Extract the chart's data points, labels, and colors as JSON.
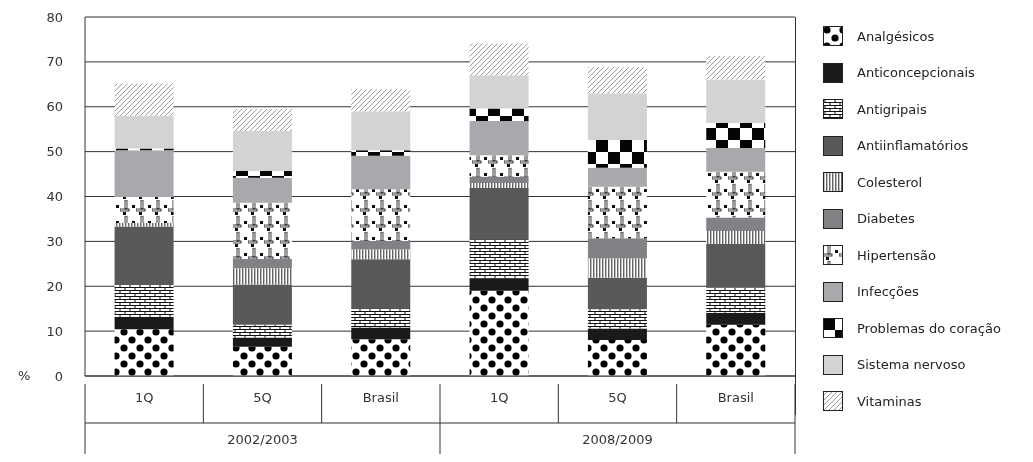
{
  "chart_data": {
    "type": "bar",
    "stacked": true,
    "ylabel": "%",
    "categories": [
      "1Q",
      "5Q",
      "Brasil",
      "1Q",
      "5Q",
      "Brasil"
    ],
    "annotations": [
      "2002/2003",
      "2008/2009"
    ],
    "series": [
      {
        "name": "Analgésicos",
        "color": "#000000",
        "values": [
          10.4,
          6.5,
          8.2,
          19.0,
          8.0,
          11.4
        ]
      },
      {
        "name": "Anticoncepcionais",
        "color": "#1a1a1a",
        "values": [
          2.8,
          2.1,
          2.6,
          2.8,
          2.6,
          2.7
        ]
      },
      {
        "name": "Antigripais",
        "color": "#111111",
        "values": [
          7.1,
          2.8,
          4.3,
          8.7,
          4.3,
          5.6
        ]
      },
      {
        "name": "Antiinflamatórios",
        "color": "#58595b",
        "values": [
          13.0,
          9.0,
          10.9,
          11.4,
          7.0,
          9.7
        ]
      },
      {
        "name": "Colesterol",
        "color": "#222222",
        "values": [
          0.8,
          3.6,
          2.2,
          1.1,
          4.3,
          2.9
        ]
      },
      {
        "name": "Diabetes",
        "color": "#808285",
        "values": [
          null,
          2.1,
          1.9,
          1.4,
          4.5,
          3.0
        ]
      },
      {
        "name": "Hipertensão",
        "color": "#0d0d0d",
        "values": [
          5.8,
          12.5,
          11.5,
          4.8,
          11.5,
          10.2
        ]
      },
      {
        "name": "Infecções",
        "color": "#a7a9ac",
        "values": [
          10.4,
          5.6,
          7.5,
          7.6,
          4.2,
          5.3
        ]
      },
      {
        "name": "Problemas do coração",
        "color": "#050505",
        "values": [
          0.4,
          1.5,
          1.2,
          2.8,
          6.2,
          5.6
        ]
      },
      {
        "name": "Sistema nervoso",
        "color": "#d1d3d4",
        "values": [
          7.3,
          8.9,
          8.7,
          7.4,
          10.4,
          9.7
        ]
      },
      {
        "name": "Vitaminas",
        "color": "#6d6e71",
        "values": [
          7.2,
          4.9,
          4.9,
          7.1,
          5.8,
          5.2
        ]
      }
    ],
    "ylim": [
      0,
      80
    ],
    "yticks": [
      0,
      10,
      20,
      30,
      40,
      50,
      60,
      70,
      80
    ],
    "grid": "y",
    "legend": "right"
  }
}
